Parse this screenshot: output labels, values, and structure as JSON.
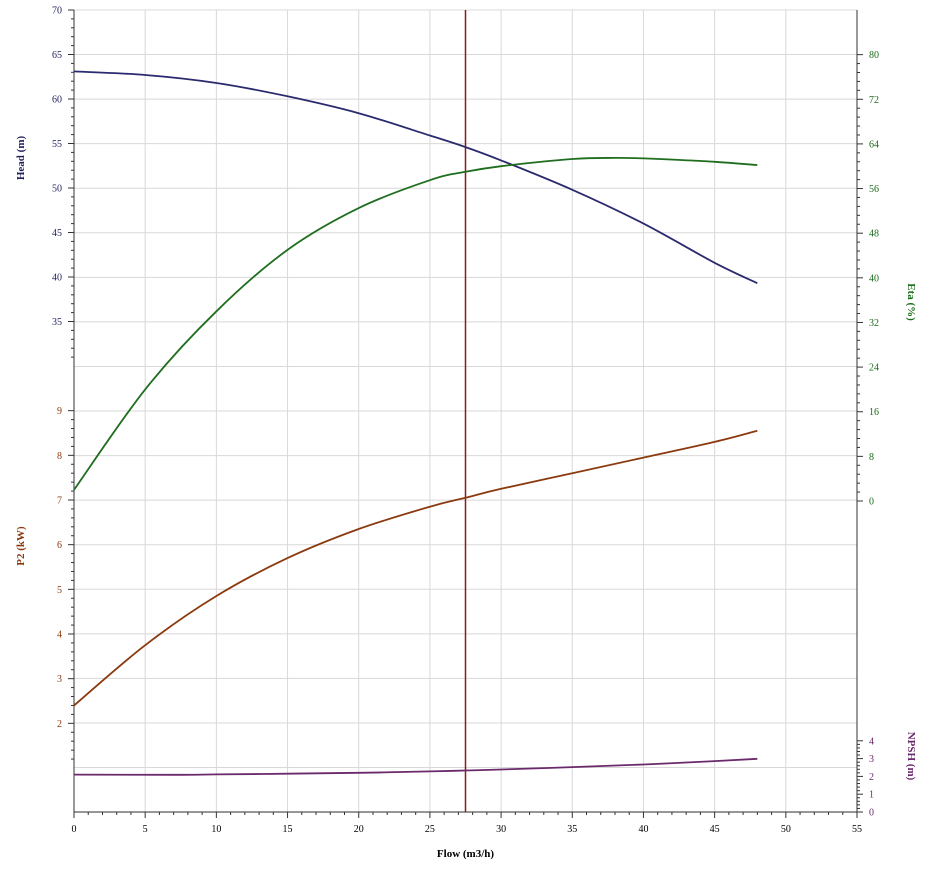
{
  "chart_data": {
    "type": "line",
    "x_axis": {
      "label": "Flow (m3/h)",
      "range": [
        0,
        55
      ],
      "ticks": [
        0,
        5,
        10,
        15,
        20,
        25,
        30,
        35,
        40,
        45,
        50,
        55
      ],
      "minor_step": 1,
      "color": "#000000"
    },
    "marker_line": {
      "x": 27.5,
      "color": "#8b1a1a"
    },
    "grid": true,
    "axes": {
      "head": {
        "label": "Head (m)",
        "side": "left",
        "color": "#1f1f5e",
        "range": [
          30,
          70
        ],
        "ticks": [
          35,
          40,
          45,
          50,
          55,
          60,
          65,
          70
        ]
      },
      "power": {
        "label": "P2 (kW)",
        "side": "left",
        "color": "#8b3a0f",
        "range": [
          1,
          10
        ],
        "ticks": [
          2,
          3,
          4,
          5,
          6,
          7,
          8,
          9
        ]
      },
      "eta": {
        "label": "Eta (%)",
        "side": "right",
        "color": "#1a6b1a",
        "range": [
          0,
          88
        ],
        "ticks": [
          0,
          8,
          16,
          24,
          32,
          40,
          48,
          56,
          64,
          72,
          80
        ]
      },
      "npsh": {
        "label": "NPSH (m)",
        "side": "right",
        "color": "#6b2a6b",
        "range": [
          0,
          10
        ],
        "ticks": [
          0,
          1,
          2,
          3,
          4
        ]
      }
    },
    "series": [
      {
        "name": "Head",
        "axis": "head",
        "color": "#2a2a6e",
        "x": [
          0,
          5,
          10,
          15,
          20,
          25,
          27.5,
          30,
          35,
          40,
          45,
          48
        ],
        "y": [
          63.1,
          62.7,
          61.8,
          60.3,
          58.4,
          55.9,
          54.6,
          53.1,
          49.8,
          46.0,
          41.6,
          39.3
        ]
      },
      {
        "name": "Eta",
        "axis": "eta",
        "color": "#1f6e1f",
        "x": [
          0,
          5,
          10,
          15,
          20,
          25,
          27.5,
          30,
          35,
          38,
          40,
          45,
          48
        ],
        "y": [
          2,
          20,
          34,
          45,
          52.5,
          57.5,
          59,
          60,
          61.3,
          61.5,
          61.4,
          60.8,
          60.2
        ]
      },
      {
        "name": "P2",
        "axis": "power",
        "color": "#8b3a0f",
        "x": [
          0,
          5,
          10,
          15,
          20,
          25,
          27.5,
          30,
          35,
          40,
          45,
          48
        ],
        "y": [
          2.4,
          3.75,
          4.85,
          5.7,
          6.35,
          6.85,
          7.05,
          7.25,
          7.6,
          7.95,
          8.3,
          8.55
        ]
      },
      {
        "name": "NPSH",
        "axis": "npsh",
        "color": "#6b2a6b",
        "x": [
          0,
          7,
          10,
          15,
          20,
          25,
          27.5,
          30,
          35,
          40,
          45,
          48
        ],
        "y": [
          2.1,
          2.09,
          2.11,
          2.15,
          2.2,
          2.28,
          2.33,
          2.39,
          2.52,
          2.67,
          2.86,
          2.99
        ]
      }
    ]
  }
}
